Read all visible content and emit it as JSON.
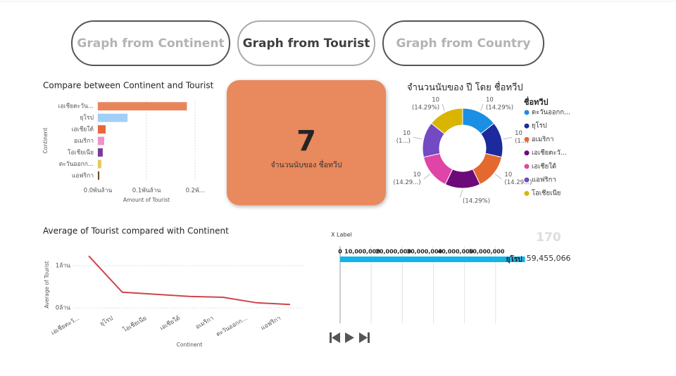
{
  "nav": {
    "buttons": [
      "Graph from Continent",
      "Graph from Tourist",
      "Graph from Country"
    ],
    "active": 1
  },
  "card": {
    "value": 7,
    "label": "จำนวนนับของ ชื่อทวีป",
    "color": "#E8895E"
  },
  "chart_data": [
    {
      "type": "bar",
      "orientation": "horizontal",
      "title": "Compare between Continent and Tourist",
      "x_label": "Amount of Tourist",
      "y_label": "Continent",
      "categories": [
        "เอเชียตะวัน...",
        "ยุโรป",
        "เอเชียใต้",
        "อเมริกา",
        "โอเชียเนีย",
        "ตะวันออกก...",
        "แอฟริกา"
      ],
      "values": [
        0.183,
        0.061,
        0.016,
        0.013,
        0.01,
        0.007,
        0.003
      ],
      "colors": [
        "#E8845C",
        "#A3CFF6",
        "#E8673F",
        "#EE92CA",
        "#7B3A96",
        "#E8C85A",
        "#6B4E2A"
      ],
      "xlim": [
        0,
        0.22
      ],
      "xticks": [
        {
          "value": 0,
          "label": "0.0พันล้าน"
        },
        {
          "value": 0.1,
          "label": "0.1พันล้าน"
        },
        {
          "value": 0.2,
          "label": "0.2พั..."
        }
      ],
      "grid": true
    },
    {
      "type": "donut",
      "title": "จำนวนนับของ ปี โดย ชื่อทวีป",
      "legend_title": "ชื่อทวีป",
      "categories": [
        "ตะวันออกก...",
        "ยุโรป",
        "อเมริกา",
        "เอเชียตะวั...",
        "เอเชียใต้",
        "แอฟริกา",
        "โอเชียเนีย"
      ],
      "values": [
        10,
        10,
        10,
        10,
        10,
        10,
        10
      ],
      "value_labels": [
        "10",
        "10",
        "10",
        null,
        "10",
        "10",
        "10"
      ],
      "percent_labels": [
        "(14.29%)",
        "(1...)",
        "(14.29...)",
        "(14.29%)",
        "(14.29...)",
        "(1...)",
        "(14.29%)"
      ],
      "colors": [
        "#1A8FE3",
        "#1D2A9E",
        "#E3692E",
        "#6C0A7A",
        "#E044A7",
        "#7449C4",
        "#D9B500"
      ]
    },
    {
      "type": "line",
      "title": "Average of Tourist compared with Continent",
      "x_label": "Continent",
      "y_label": "Average of Tourist",
      "categories": [
        "เอเชียตะวั...",
        "ยุโรป",
        "โอเชียเนีย",
        "เอเชียใต้",
        "อเมริกา",
        "ตะวันออกก...",
        "แอฟริกา"
      ],
      "values": [
        1.23,
        0.37,
        0.32,
        0.27,
        0.25,
        0.12,
        0.08
      ],
      "color": "#D0434B",
      "ylim": [
        0,
        1.35
      ],
      "yticks": [
        {
          "value": 0,
          "label": "0ล้าน"
        },
        {
          "value": 1,
          "label": "1ล้าน"
        }
      ],
      "grid": true
    },
    {
      "type": "race",
      "x_label": "X Label",
      "annotation": "170",
      "categories": [
        "ยุโรป"
      ],
      "values": [
        59455066
      ],
      "value_labels": [
        "59,455,066"
      ],
      "color": "#12B5E8",
      "xlim": [
        0,
        60000000
      ],
      "xticks": [
        0,
        {
          "value": 10000000,
          "label": "10,000,000"
        },
        {
          "value": 20000000,
          "label": "20,000,000"
        },
        {
          "value": 30000000,
          "label": "30,000,000"
        },
        {
          "value": 40000000,
          "label": "40,000,000"
        },
        {
          "value": 50000000,
          "label": "50,000,000"
        }
      ],
      "grid": true
    }
  ]
}
